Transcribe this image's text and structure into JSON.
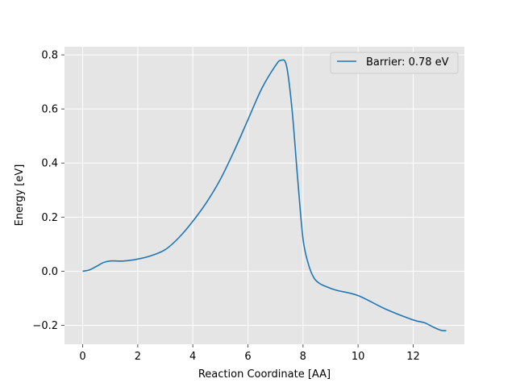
{
  "chart_data": {
    "type": "line",
    "xlabel": "Reaction Coordinate [AA]",
    "ylabel": "Energy [eV]",
    "xlim": [
      -0.66,
      13.86
    ],
    "ylim": [
      -0.27,
      0.83
    ],
    "xticks": [
      0,
      2,
      4,
      6,
      8,
      10,
      12
    ],
    "yticks": [
      -0.2,
      0.0,
      0.2,
      0.4,
      0.6,
      0.8
    ],
    "xtick_labels": [
      "0",
      "2",
      "4",
      "6",
      "8",
      "10",
      "12"
    ],
    "ytick_labels": [
      "−0.2",
      "0.0",
      "0.2",
      "0.4",
      "0.6",
      "0.8"
    ],
    "grid": true,
    "legend_position": "top-right",
    "colors": {
      "background": "#e5e5e5",
      "grid": "#ffffff",
      "line": "#1f77b4"
    },
    "series": [
      {
        "name": "Barrier: 0.78 eV",
        "x": [
          0.0,
          0.25,
          0.5,
          0.75,
          1.0,
          1.5,
          2.0,
          2.5,
          3.0,
          3.5,
          4.0,
          4.5,
          5.0,
          5.5,
          6.0,
          6.5,
          7.0,
          7.2,
          7.4,
          7.6,
          7.8,
          8.0,
          8.2,
          8.4,
          8.6,
          8.8,
          9.2,
          10.0,
          11.0,
          12.0,
          12.4,
          12.7,
          13.0,
          13.2
        ],
        "y": [
          0.0,
          0.005,
          0.018,
          0.032,
          0.038,
          0.038,
          0.045,
          0.058,
          0.08,
          0.125,
          0.185,
          0.255,
          0.34,
          0.445,
          0.56,
          0.675,
          0.76,
          0.78,
          0.76,
          0.6,
          0.35,
          0.12,
          0.025,
          -0.025,
          -0.045,
          -0.055,
          -0.07,
          -0.09,
          -0.14,
          -0.18,
          -0.19,
          -0.205,
          -0.218,
          -0.22
        ]
      }
    ]
  }
}
